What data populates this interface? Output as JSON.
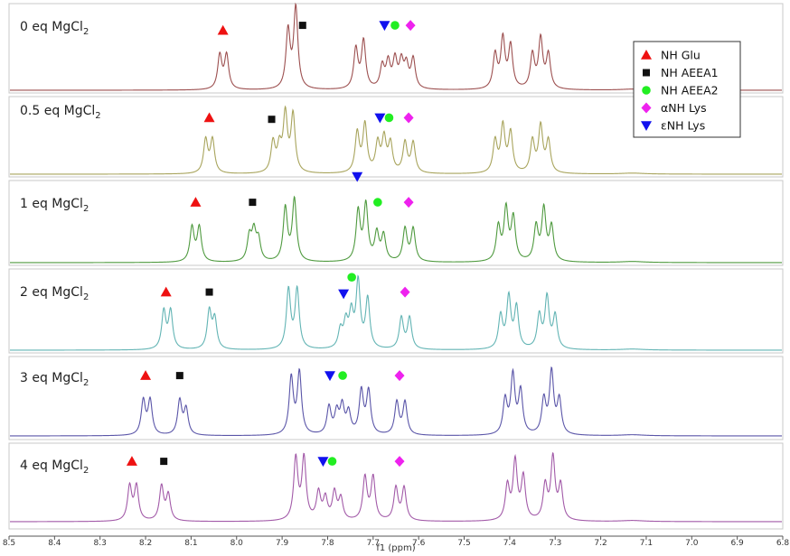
{
  "chart_data": {
    "type": "line",
    "subtype": "stacked NMR spectra",
    "xlabel": "f1 (ppm)",
    "x_reversed": true,
    "xlim": [
      8.5,
      6.8
    ],
    "x_ticks": [
      "8.5",
      "8.4",
      "8.3",
      "8.2",
      "8.1",
      "8.0",
      "7.9",
      "7.8",
      "7.7",
      "7.6",
      "7.5",
      "7.4",
      "7.3",
      "7.2",
      "7.1",
      "7.0",
      "6.9",
      "6.8"
    ],
    "legend": {
      "placement": "top-right",
      "entries": [
        {
          "marker": "triangle-up",
          "color": "#ee1111",
          "label": "NH Glu"
        },
        {
          "marker": "square",
          "color": "#111111",
          "label": "NH AEEA1"
        },
        {
          "marker": "circle",
          "color": "#22ee22",
          "label": "NH AEEA2"
        },
        {
          "marker": "diamond",
          "color": "#ee22ee",
          "label": "αNH Lys"
        },
        {
          "marker": "triangle-down",
          "color": "#1111ee",
          "label": "εNH Lys"
        }
      ]
    },
    "series": [
      {
        "name": "0 eq MgCl2",
        "label_main": "0 eq MgCl",
        "label_sub": "2",
        "color": "#9c4f4f",
        "peaks": [
          [
            8.037,
            0.4
          ],
          [
            8.022,
            0.4
          ],
          [
            7.887,
            0.68
          ],
          [
            7.87,
            0.95
          ],
          [
            7.738,
            0.47
          ],
          [
            7.721,
            0.56
          ],
          [
            7.68,
            0.26
          ],
          [
            7.667,
            0.3
          ],
          [
            7.652,
            0.33
          ],
          [
            7.638,
            0.3
          ],
          [
            7.627,
            0.26
          ],
          [
            7.612,
            0.35
          ],
          [
            7.432,
            0.4
          ],
          [
            7.415,
            0.58
          ],
          [
            7.398,
            0.5
          ],
          [
            7.35,
            0.4
          ],
          [
            7.332,
            0.58
          ],
          [
            7.315,
            0.4
          ]
        ],
        "markers": {
          "glu": [
            8.03,
            0.62
          ],
          "aeea1": [
            7.855,
            0.68
          ],
          "lys_eps": [
            7.675,
            0.68
          ],
          "aeea2": [
            7.652,
            0.68
          ],
          "lys_alpha": [
            7.618,
            0.68
          ]
        }
      },
      {
        "name": "0.5 eq MgCl2",
        "label_main": "0.5 eq MgCl",
        "label_sub": "2",
        "color": "#a8a45c",
        "peaks": [
          [
            8.068,
            0.42
          ],
          [
            8.053,
            0.42
          ],
          [
            7.92,
            0.38
          ],
          [
            7.906,
            0.3
          ],
          [
            7.893,
            0.72
          ],
          [
            7.876,
            0.72
          ],
          [
            7.735,
            0.5
          ],
          [
            7.718,
            0.6
          ],
          [
            7.69,
            0.36
          ],
          [
            7.676,
            0.42
          ],
          [
            7.662,
            0.36
          ],
          [
            7.63,
            0.38
          ],
          [
            7.612,
            0.38
          ],
          [
            7.432,
            0.4
          ],
          [
            7.415,
            0.58
          ],
          [
            7.398,
            0.5
          ],
          [
            7.35,
            0.4
          ],
          [
            7.332,
            0.58
          ],
          [
            7.315,
            0.4
          ]
        ],
        "markers": {
          "glu": [
            8.06,
            0.62
          ],
          "aeea1": [
            7.923,
            0.6
          ],
          "lys_eps": [
            7.685,
            0.62
          ],
          "aeea2": [
            7.665,
            0.62
          ],
          "lys_alpha": [
            7.622,
            0.62
          ]
        }
      },
      {
        "name": "1 eq MgCl2",
        "label_main": "1 eq MgCl",
        "label_sub": "2",
        "color": "#4f9a3f",
        "peaks": [
          [
            8.098,
            0.4
          ],
          [
            8.082,
            0.4
          ],
          [
            7.972,
            0.28
          ],
          [
            7.962,
            0.33
          ],
          [
            7.952,
            0.24
          ],
          [
            7.893,
            0.62
          ],
          [
            7.873,
            0.72
          ],
          [
            7.733,
            0.58
          ],
          [
            7.716,
            0.65
          ],
          [
            7.692,
            0.32
          ],
          [
            7.677,
            0.3
          ],
          [
            7.63,
            0.38
          ],
          [
            7.612,
            0.38
          ],
          [
            7.425,
            0.4
          ],
          [
            7.408,
            0.6
          ],
          [
            7.392,
            0.5
          ],
          [
            7.342,
            0.4
          ],
          [
            7.325,
            0.6
          ],
          [
            7.308,
            0.4
          ]
        ],
        "markers": {
          "glu": [
            8.09,
            0.62
          ],
          "aeea1": [
            7.965,
            0.62
          ],
          "lys_eps": [
            7.735,
            0.92
          ],
          "aeea2": [
            7.69,
            0.62
          ],
          "lys_alpha": [
            7.622,
            0.62
          ]
        }
      },
      {
        "name": "2 eq MgCl2",
        "label_main": "2 eq MgCl",
        "label_sub": "2",
        "color": "#62b4b4",
        "peaks": [
          [
            8.16,
            0.46
          ],
          [
            8.145,
            0.46
          ],
          [
            8.06,
            0.46
          ],
          [
            8.048,
            0.36
          ],
          [
            7.886,
            0.72
          ],
          [
            7.867,
            0.72
          ],
          [
            7.772,
            0.22
          ],
          [
            7.76,
            0.3
          ],
          [
            7.748,
            0.4
          ],
          [
            7.733,
            0.8
          ],
          [
            7.712,
            0.6
          ],
          [
            7.638,
            0.38
          ],
          [
            7.62,
            0.38
          ],
          [
            7.42,
            0.4
          ],
          [
            7.402,
            0.62
          ],
          [
            7.385,
            0.5
          ],
          [
            7.335,
            0.4
          ],
          [
            7.318,
            0.62
          ],
          [
            7.3,
            0.4
          ]
        ],
        "markers": {
          "glu": [
            8.155,
            0.62
          ],
          "aeea1": [
            8.06,
            0.62
          ],
          "lys_eps": [
            7.765,
            0.6
          ],
          "aeea2": [
            7.747,
            0.8
          ],
          "lys_alpha": [
            7.63,
            0.62
          ]
        }
      },
      {
        "name": "3 eq MgCl2",
        "label_main": "3 eq MgCl",
        "label_sub": "2",
        "color": "#5a55a8",
        "peaks": [
          [
            8.205,
            0.4
          ],
          [
            8.19,
            0.4
          ],
          [
            8.125,
            0.4
          ],
          [
            8.111,
            0.3
          ],
          [
            7.88,
            0.66
          ],
          [
            7.862,
            0.72
          ],
          [
            7.797,
            0.32
          ],
          [
            7.78,
            0.25
          ],
          [
            7.768,
            0.32
          ],
          [
            7.754,
            0.25
          ],
          [
            7.726,
            0.5
          ],
          [
            7.71,
            0.5
          ],
          [
            7.648,
            0.38
          ],
          [
            7.63,
            0.38
          ],
          [
            7.41,
            0.4
          ],
          [
            7.393,
            0.68
          ],
          [
            7.376,
            0.5
          ],
          [
            7.325,
            0.4
          ],
          [
            7.308,
            0.72
          ],
          [
            7.291,
            0.4
          ]
        ],
        "markers": {
          "glu": [
            8.2,
            0.62
          ],
          "aeea1": [
            8.125,
            0.62
          ],
          "lys_eps": [
            7.795,
            0.62
          ],
          "aeea2": [
            7.767,
            0.62
          ],
          "lys_alpha": [
            7.642,
            0.62
          ]
        }
      },
      {
        "name": "4 eq MgCl2",
        "label_main": "4 eq MgCl",
        "label_sub": "2",
        "color": "#a25aa8",
        "peaks": [
          [
            8.235,
            0.4
          ],
          [
            8.22,
            0.4
          ],
          [
            8.165,
            0.4
          ],
          [
            8.15,
            0.3
          ],
          [
            7.87,
            0.72
          ],
          [
            7.852,
            0.72
          ],
          [
            7.82,
            0.32
          ],
          [
            7.805,
            0.25
          ],
          [
            7.785,
            0.32
          ],
          [
            7.771,
            0.25
          ],
          [
            7.718,
            0.5
          ],
          [
            7.7,
            0.5
          ],
          [
            7.65,
            0.38
          ],
          [
            7.632,
            0.38
          ],
          [
            7.405,
            0.4
          ],
          [
            7.388,
            0.68
          ],
          [
            7.37,
            0.5
          ],
          [
            7.322,
            0.4
          ],
          [
            7.305,
            0.72
          ],
          [
            7.288,
            0.4
          ]
        ],
        "markers": {
          "glu": [
            8.23,
            0.62
          ],
          "aeea1": [
            8.16,
            0.62
          ],
          "lys_eps": [
            7.81,
            0.62
          ],
          "aeea2": [
            7.79,
            0.62
          ],
          "lys_alpha": [
            7.642,
            0.62
          ]
        }
      }
    ]
  }
}
